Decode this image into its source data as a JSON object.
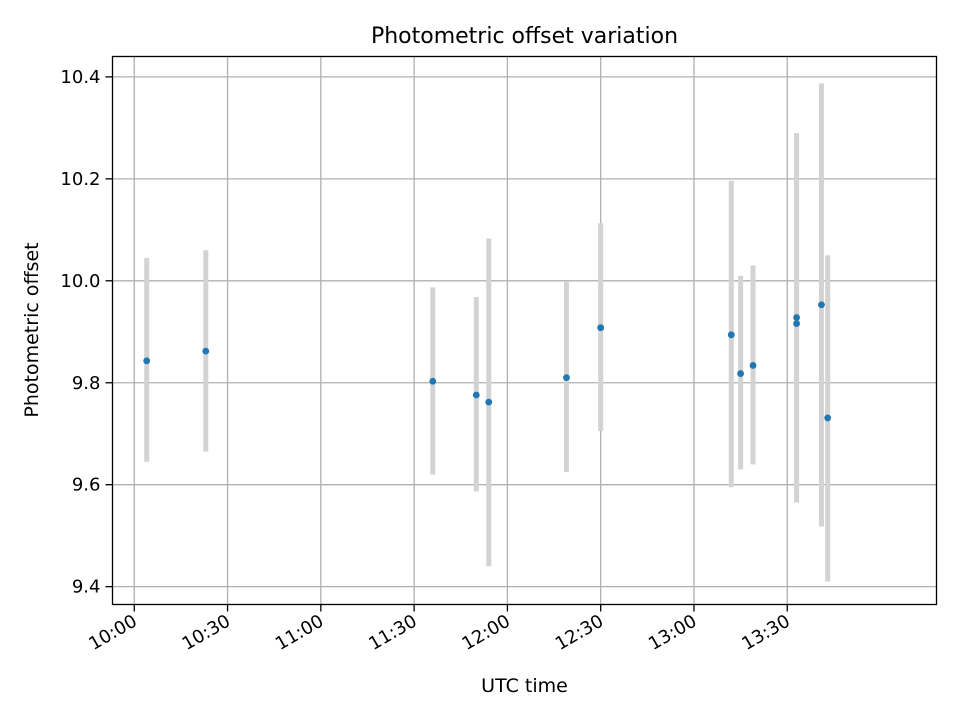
{
  "chart_data": {
    "type": "scatter",
    "title": "Photometric offset variation",
    "xlabel": "UTC time",
    "ylabel": "Photometric offset",
    "xlim": [
      "09:53",
      "14:18"
    ],
    "ylim": [
      9.365,
      10.44
    ],
    "x_ticks": [
      "10:00",
      "10:30",
      "11:00",
      "11:30",
      "12:00",
      "12:30",
      "13:00",
      "13:30"
    ],
    "y_ticks": [
      9.4,
      9.6,
      9.8,
      10.0,
      10.2,
      10.4
    ],
    "y_tick_labels": [
      "9.4",
      "9.6",
      "9.8",
      "10.0",
      "10.2",
      "10.4"
    ],
    "grid": true,
    "marker_color": "#1f77b4",
    "errorbar_color": "#d3d3d3",
    "series": [
      {
        "x": [
          "10:04",
          "10:23",
          "11:36",
          "11:50",
          "11:54",
          "12:19",
          "12:30",
          "13:12",
          "13:15",
          "13:19",
          "13:33",
          "13:33",
          "13:41",
          "13:43"
        ],
        "y": [
          9.843,
          9.862,
          9.803,
          9.776,
          9.762,
          9.81,
          9.908,
          9.894,
          9.818,
          9.834,
          9.928,
          9.916,
          9.953,
          9.731
        ],
        "err_low": [
          9.645,
          9.665,
          9.62,
          9.587,
          9.44,
          9.625,
          9.705,
          9.595,
          9.63,
          9.64,
          9.565,
          9.565,
          9.518,
          9.41
        ],
        "err_high": [
          10.045,
          10.06,
          9.987,
          9.968,
          10.083,
          9.998,
          10.113,
          10.196,
          10.01,
          10.03,
          10.29,
          10.29,
          10.387,
          10.05
        ]
      }
    ]
  }
}
